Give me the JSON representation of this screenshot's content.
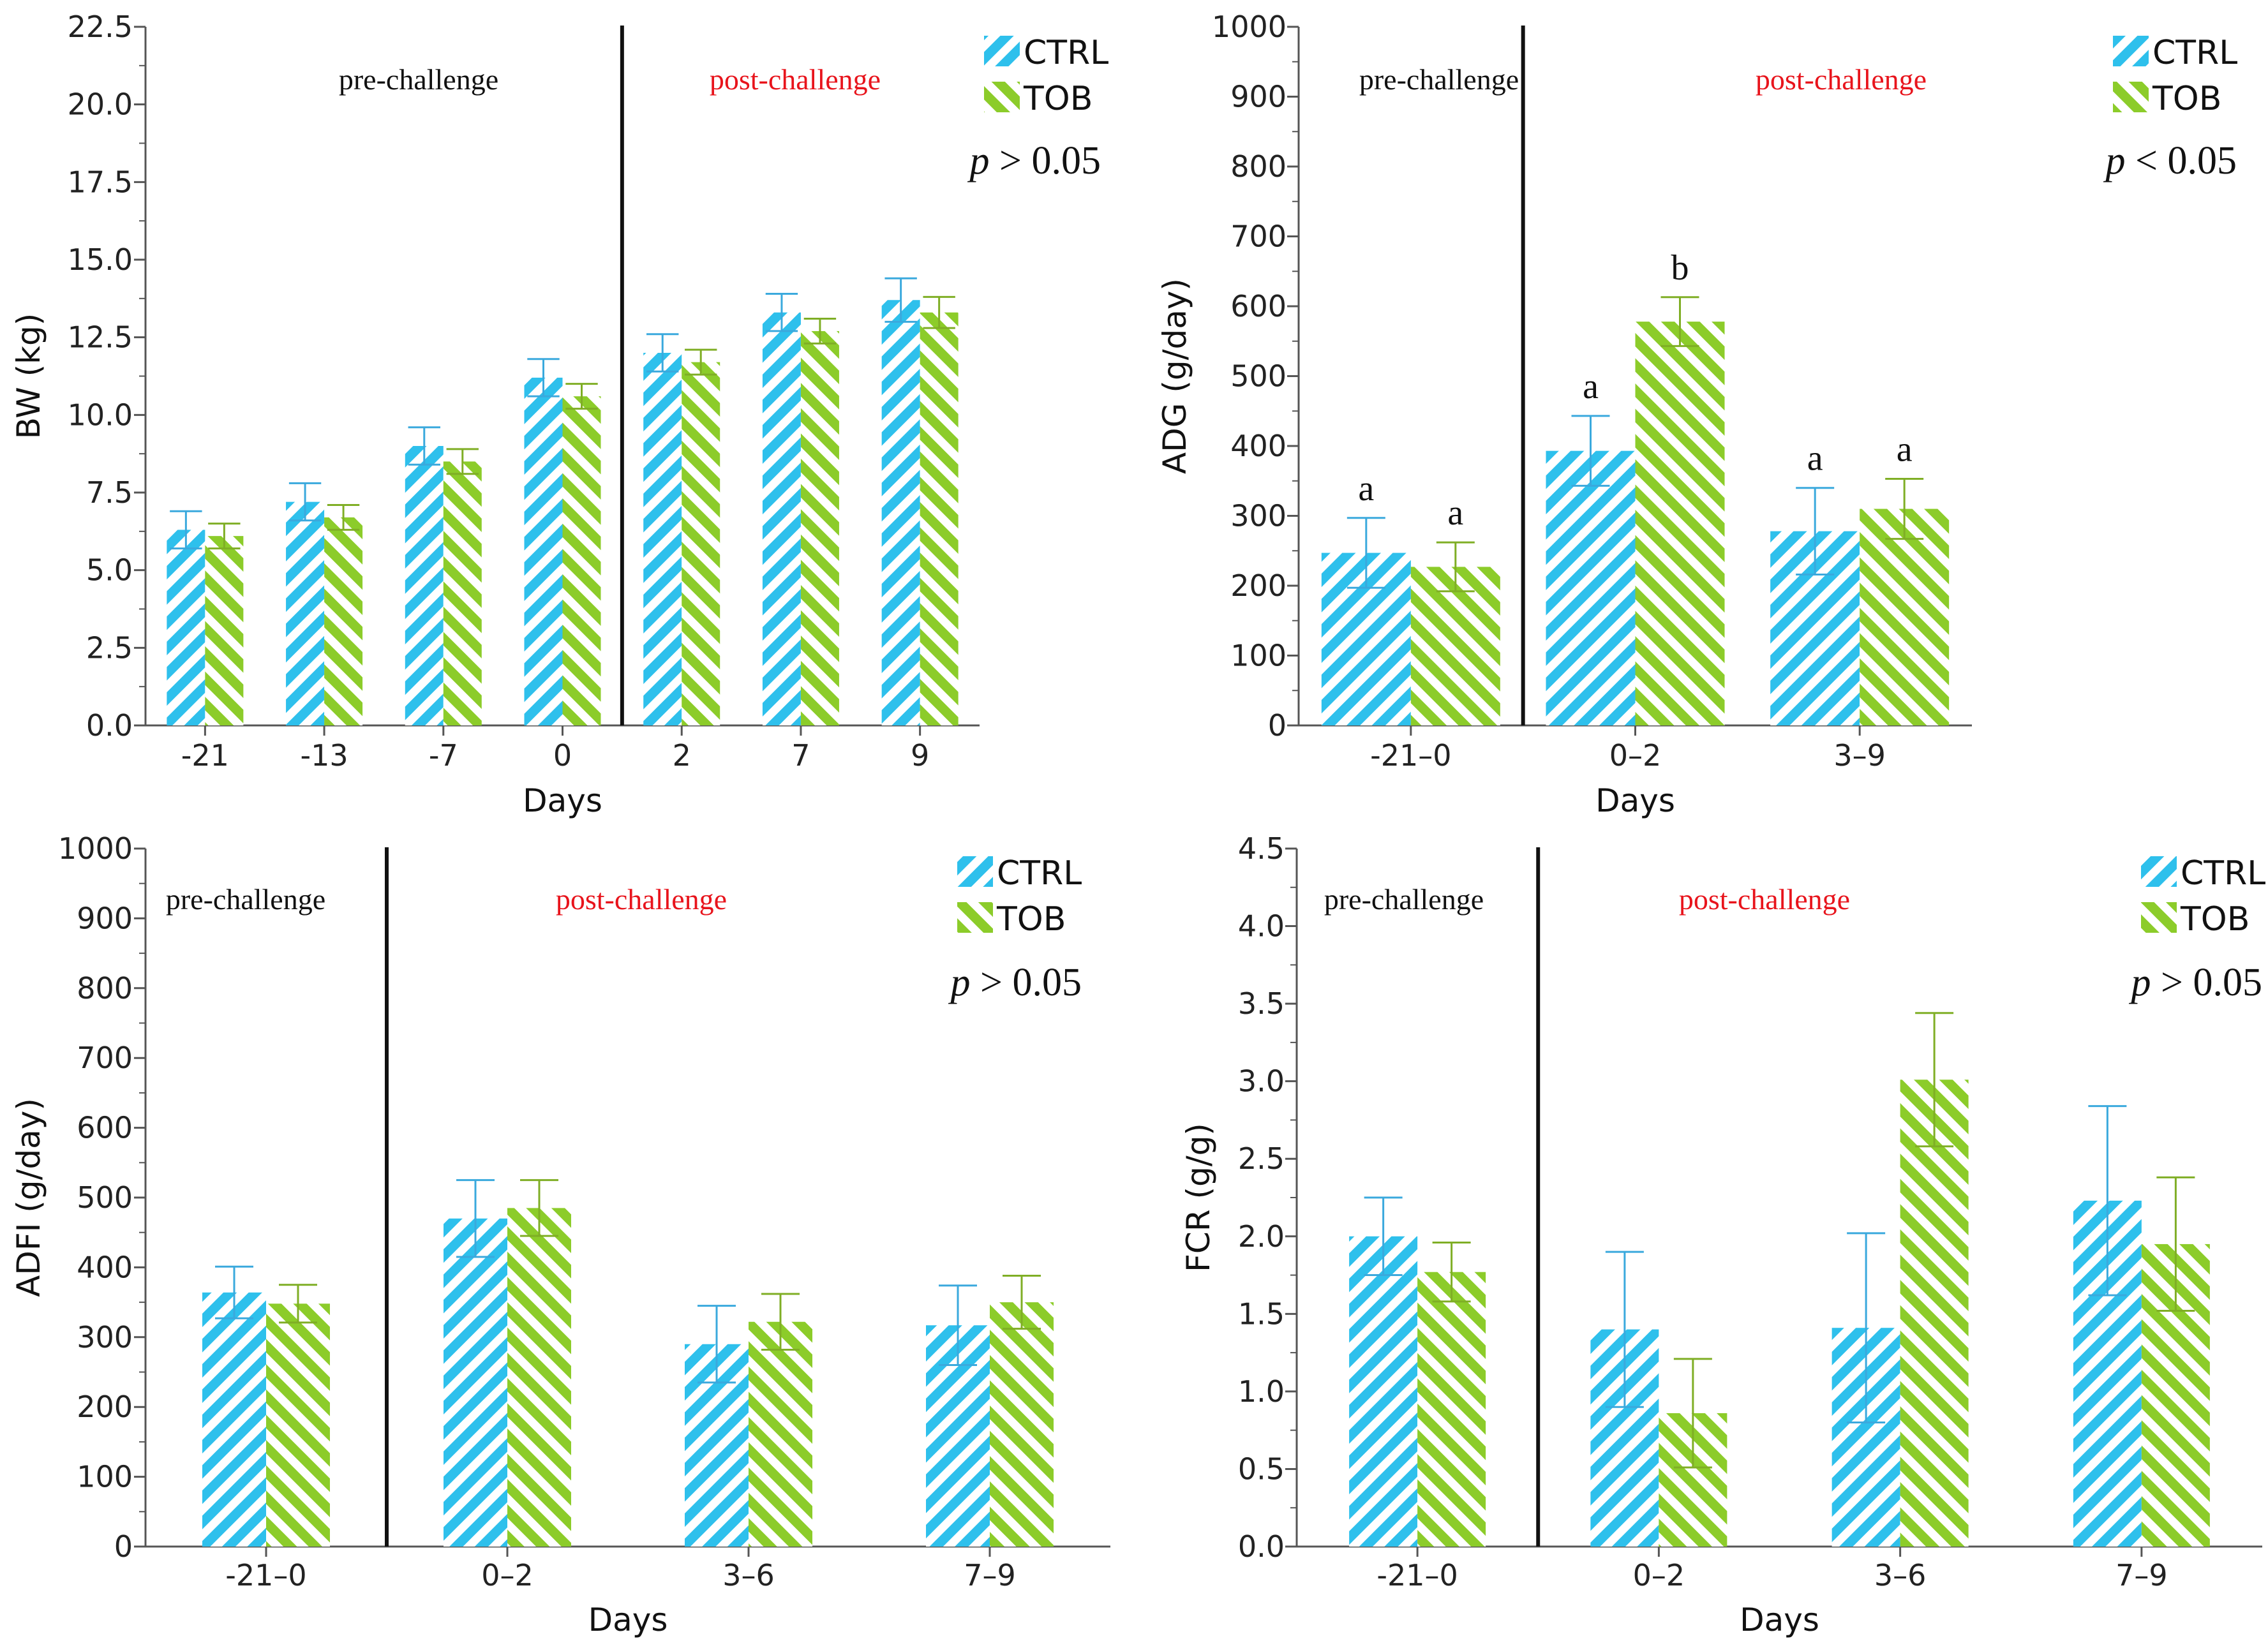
{
  "colors": {
    "ctrl": "#2ec0ec",
    "tob": "#8ccc2a",
    "ctrl_err": "#3aa9dd",
    "tob_err": "#7fae25",
    "post_label": "#e8141c"
  },
  "chart_data": [
    {
      "type": "bar",
      "id": "bw",
      "ylabel": "BW (kg)",
      "xlabel": "Days",
      "ylim": [
        0,
        22.5
      ],
      "yticks": [
        "0.0",
        "2.5",
        "5.0",
        "7.5",
        "10.0",
        "12.5",
        "15.0",
        "17.5",
        "20.0",
        "22.5"
      ],
      "categories": [
        "-21",
        "-13",
        "-7",
        "0",
        "2",
        "7",
        "9"
      ],
      "divider_after": 3,
      "phase_labels": {
        "pre": "pre-challenge",
        "post": "post-challenge"
      },
      "legend": [
        "CTRL",
        "TOB"
      ],
      "p_symbol": "p",
      "p_value": "> 0.05",
      "series": [
        {
          "name": "CTRL",
          "values": [
            6.3,
            7.2,
            9.0,
            11.2,
            12.0,
            13.3,
            13.7
          ],
          "errors": [
            0.6,
            0.6,
            0.6,
            0.6,
            0.6,
            0.6,
            0.7
          ]
        },
        {
          "name": "TOB",
          "values": [
            6.1,
            6.7,
            8.5,
            10.6,
            11.7,
            12.7,
            13.3
          ],
          "errors": [
            0.4,
            0.4,
            0.4,
            0.4,
            0.4,
            0.4,
            0.5
          ]
        }
      ],
      "annotations": []
    },
    {
      "type": "bar",
      "id": "adg",
      "ylabel": "ADG (g/day)",
      "xlabel": "Days",
      "ylim": [
        0,
        1000
      ],
      "yticks": [
        "0",
        "100",
        "200",
        "300",
        "400",
        "500",
        "600",
        "700",
        "800",
        "900",
        "1000"
      ],
      "categories": [
        "-21–0",
        "0–2",
        "3–9"
      ],
      "divider_after": 0,
      "phase_labels": {
        "pre": "pre-challenge",
        "post": "post-challenge"
      },
      "legend": [
        "CTRL",
        "TOB"
      ],
      "p_symbol": "p",
      "p_value": "< 0.05",
      "series": [
        {
          "name": "CTRL",
          "values": [
            247,
            393,
            278
          ],
          "errors": [
            50,
            50,
            62
          ]
        },
        {
          "name": "TOB",
          "values": [
            227,
            578,
            310
          ],
          "errors": [
            35,
            35,
            43
          ]
        }
      ],
      "annotations": [
        {
          "series": 0,
          "index": 0,
          "text": "a"
        },
        {
          "series": 1,
          "index": 0,
          "text": "a"
        },
        {
          "series": 0,
          "index": 1,
          "text": "a"
        },
        {
          "series": 1,
          "index": 1,
          "text": "b"
        },
        {
          "series": 0,
          "index": 2,
          "text": "a"
        },
        {
          "series": 1,
          "index": 2,
          "text": "a"
        }
      ]
    },
    {
      "type": "bar",
      "id": "adfi",
      "ylabel": "ADFI (g/day)",
      "xlabel": "Days",
      "ylim": [
        0,
        1000
      ],
      "yticks": [
        "0",
        "100",
        "200",
        "300",
        "400",
        "500",
        "600",
        "700",
        "800",
        "900",
        "1000"
      ],
      "categories": [
        "-21–0",
        "0–2",
        "3–6",
        "7–9"
      ],
      "divider_after": 0,
      "phase_labels": {
        "pre": "pre-challenge",
        "post": "post-challenge"
      },
      "legend": [
        "CTRL",
        "TOB"
      ],
      "p_symbol": "p",
      "p_value": "> 0.05",
      "series": [
        {
          "name": "CTRL",
          "values": [
            364,
            470,
            290,
            317
          ],
          "errors": [
            37,
            55,
            55,
            57
          ]
        },
        {
          "name": "TOB",
          "values": [
            348,
            485,
            322,
            350
          ],
          "errors": [
            27,
            40,
            40,
            38
          ]
        }
      ],
      "annotations": []
    },
    {
      "type": "bar",
      "id": "fcr",
      "ylabel": "FCR (g/g)",
      "xlabel": "Days",
      "ylim": [
        0,
        4.5
      ],
      "yticks": [
        "0.0",
        "0.5",
        "1.0",
        "1.5",
        "2.0",
        "2.5",
        "3.0",
        "3.5",
        "4.0",
        "4.5"
      ],
      "categories": [
        "-21–0",
        "0–2",
        "3–6",
        "7–9"
      ],
      "divider_after": 0,
      "phase_labels": {
        "pre": "pre-challenge",
        "post": "post-challenge"
      },
      "legend": [
        "CTRL",
        "TOB"
      ],
      "p_symbol": "p",
      "p_value": "> 0.05",
      "series": [
        {
          "name": "CTRL",
          "values": [
            2.0,
            1.4,
            1.41,
            2.23
          ],
          "errors": [
            0.25,
            0.5,
            0.61,
            0.61
          ]
        },
        {
          "name": "TOB",
          "values": [
            1.77,
            0.86,
            3.01,
            1.95
          ],
          "errors": [
            0.19,
            0.35,
            0.43,
            0.43
          ]
        }
      ],
      "annotations": []
    }
  ]
}
